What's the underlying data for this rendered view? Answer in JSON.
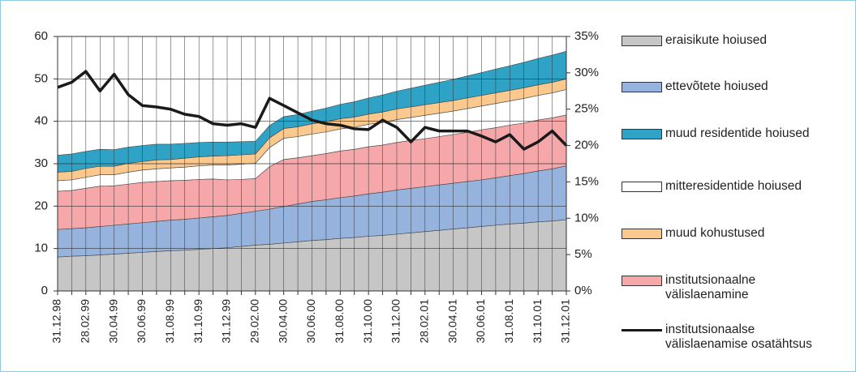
{
  "chart_data": {
    "type": "stacked-area",
    "categories": [
      "31.12.98",
      null,
      "28.02.99",
      null,
      "30.04.99",
      null,
      "30.06.99",
      null,
      "31.08.99",
      null,
      "31.10.99",
      null,
      "31.12.99",
      null,
      "29.02.00",
      null,
      "30.04.00",
      null,
      "30.06.00",
      null,
      "31.08.00",
      null,
      "31.10.00",
      null,
      "31.12.00",
      null,
      "28.02.01",
      null,
      "30.04.01",
      null,
      "30.06.01",
      null,
      "31.08.01",
      null,
      "31.10.01",
      null,
      "31.12.01"
    ],
    "series": [
      {
        "name": "eraisikute hoiused",
        "color": "#c6c6c6",
        "values": [
          8.0,
          8.2,
          8.3,
          8.5,
          8.7,
          8.9,
          9.1,
          9.3,
          9.5,
          9.6,
          9.8,
          10.0,
          10.2,
          10.5,
          10.8,
          11.0,
          11.3,
          11.6,
          11.9,
          12.1,
          12.4,
          12.6,
          12.9,
          13.1,
          13.4,
          13.7,
          14.0,
          14.3,
          14.6,
          14.9,
          15.2,
          15.5,
          15.8,
          16.0,
          16.3,
          16.5,
          16.8
        ]
      },
      {
        "name": "ettevõtete hoiused",
        "color": "#95b3dc",
        "values": [
          6.5,
          6.5,
          6.6,
          6.7,
          6.8,
          6.9,
          7.0,
          7.1,
          7.2,
          7.3,
          7.4,
          7.5,
          7.6,
          7.8,
          8.0,
          8.3,
          8.6,
          8.9,
          9.2,
          9.4,
          9.6,
          9.8,
          10.0,
          10.2,
          10.4,
          10.5,
          10.6,
          10.7,
          10.8,
          10.9,
          11.0,
          11.2,
          11.4,
          11.7,
          12.0,
          12.3,
          12.7
        ]
      },
      {
        "name": "institutsionaalne välislaenamine",
        "color": "#f5a7aa",
        "values": [
          9.0,
          9.0,
          9.3,
          9.5,
          9.3,
          9.4,
          9.5,
          9.4,
          9.3,
          9.2,
          9.1,
          8.9,
          8.4,
          8.0,
          7.7,
          10.0,
          11.1,
          10.9,
          10.8,
          10.9,
          11.0,
          11.0,
          11.1,
          11.1,
          11.2,
          11.3,
          11.3,
          11.4,
          11.5,
          11.6,
          11.8,
          11.8,
          11.9,
          11.9,
          12.0,
          12.0,
          12.0
        ]
      },
      {
        "name": "mitteresidentide hoiused",
        "color": "#ffffff",
        "values": [
          2.5,
          2.5,
          2.6,
          2.7,
          2.6,
          2.8,
          2.9,
          3.0,
          3.0,
          3.1,
          3.2,
          3.3,
          3.5,
          3.6,
          3.6,
          4.5,
          5.0,
          5.0,
          5.1,
          5.1,
          5.2,
          5.2,
          5.3,
          5.3,
          5.4,
          5.4,
          5.5,
          5.5,
          5.5,
          5.6,
          5.6,
          5.7,
          5.7,
          5.8,
          5.8,
          5.9,
          6.0
        ]
      },
      {
        "name": "muud kohustused",
        "color": "#fbc98e",
        "values": [
          2.0,
          2.0,
          2.1,
          2.0,
          2.0,
          2.1,
          2.0,
          2.1,
          2.0,
          2.1,
          2.1,
          2.1,
          2.2,
          2.2,
          2.2,
          2.3,
          2.3,
          2.3,
          2.4,
          2.4,
          2.4,
          2.4,
          2.4,
          2.5,
          2.5,
          2.5,
          2.5,
          2.5,
          2.5,
          2.5,
          2.5,
          2.5,
          2.5,
          2.5,
          2.5,
          2.5,
          2.5
        ]
      },
      {
        "name": "muud residentide hoiused",
        "color": "#2ea3c6",
        "values": [
          4.0,
          4.1,
          4.0,
          4.0,
          3.9,
          3.8,
          3.8,
          3.7,
          3.6,
          3.5,
          3.4,
          3.3,
          3.2,
          3.1,
          3.0,
          2.9,
          2.8,
          2.9,
          3.0,
          3.2,
          3.4,
          3.6,
          3.8,
          4.0,
          4.2,
          4.4,
          4.6,
          4.8,
          5.0,
          5.2,
          5.4,
          5.6,
          5.8,
          6.0,
          6.2,
          6.4,
          6.5
        ]
      },
      {
        "name": "institutsionaalse välislaenamise osatähtsus",
        "color": "#1a1a1a",
        "axis": "y2",
        "values": [
          28.0,
          28.7,
          30.2,
          27.5,
          29.8,
          27.0,
          25.5,
          25.3,
          25.0,
          24.3,
          24.0,
          23.0,
          22.8,
          23.0,
          22.5,
          26.5,
          25.5,
          24.5,
          23.5,
          23.0,
          22.8,
          22.3,
          22.2,
          23.5,
          22.5,
          20.5,
          22.5,
          22.0,
          22.0,
          22.0,
          21.3,
          20.5,
          21.5,
          19.5,
          20.5,
          22.0,
          20.0
        ]
      }
    ],
    "ylim": [
      0,
      60
    ],
    "yticks": [
      0,
      10,
      20,
      30,
      40,
      50,
      60
    ],
    "y2lim": [
      0,
      35
    ],
    "y2ticks": [
      {
        "value": 0,
        "label": "0%"
      },
      {
        "value": 5,
        "label": "5%"
      },
      {
        "value": 10,
        "label": "10%"
      },
      {
        "value": 15,
        "label": "15%"
      },
      {
        "value": 20,
        "label": "20%"
      },
      {
        "value": 25,
        "label": "25%"
      },
      {
        "value": 30,
        "label": "30%"
      },
      {
        "value": 35,
        "label": "35%"
      }
    ],
    "grid": true
  }
}
